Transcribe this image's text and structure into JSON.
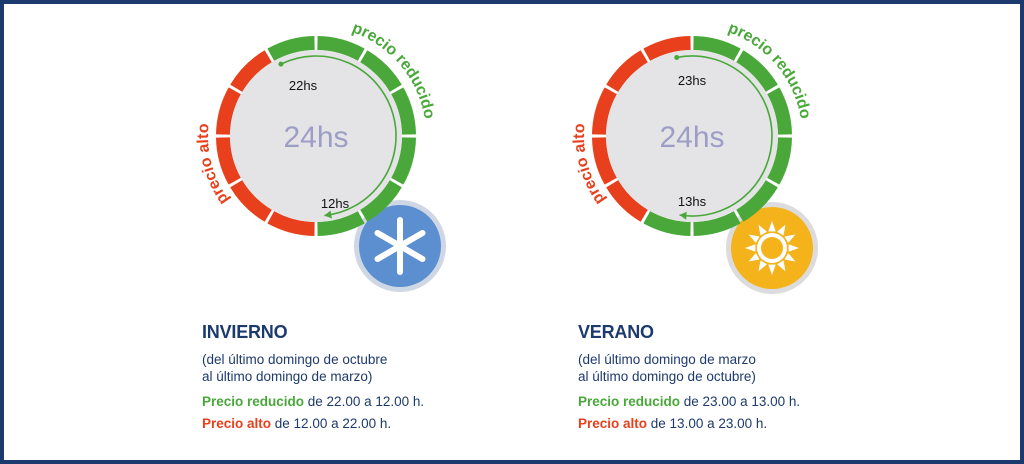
{
  "colors": {
    "low": "#4aa83b",
    "high": "#e8401c",
    "navy": "#1d3a6e",
    "dial_center": "#e4e4e6",
    "center_text": "#9d9ec6"
  },
  "diagrams": [
    {
      "id": "winter",
      "center_label": "24hs",
      "low_label": "precio reducido",
      "high_label": "precio alto",
      "start_label": "22hs",
      "end_label": "12hs",
      "reduced_from_hour": 22,
      "reduced_to_hour": 12,
      "icon": "snowflake-icon",
      "title": "INVIERNO",
      "period_line1": "(del último domingo de octubre",
      "period_line2": "al último domingo de marzo)",
      "low_tag": "Precio reducido",
      "low_text": " de 22.00 a 12.00 h.",
      "high_tag": "Precio alto",
      "high_text": " de 12.00 a 22.00 h."
    },
    {
      "id": "summer",
      "center_label": "24hs",
      "low_label": "precio reducido",
      "high_label": "precio alto",
      "start_label": "23hs",
      "end_label": "13hs",
      "reduced_from_hour": 23,
      "reduced_to_hour": 13,
      "icon": "sun-icon",
      "title": "VERANO",
      "period_line1": "(del último domingo de marzo",
      "period_line2": "al último domingo de octubre)",
      "low_tag": "Precio reducido",
      "low_text": " de 23.00 a 13.00 h.",
      "high_tag": "Precio alto",
      "high_text": " de 13.00 a 23.00 h."
    }
  ]
}
